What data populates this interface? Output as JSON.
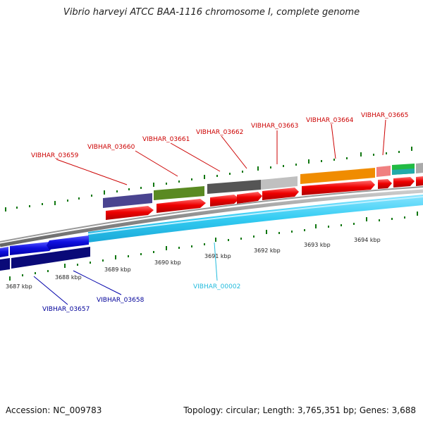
{
  "title": "Vibrio harveyi ATCC BAA-1116 chromosome I, complete genome",
  "footer": {
    "accession": "Accession: NC_009783",
    "summary": "Topology: circular; Length: 3,765,351 bp; Genes: 3,688"
  },
  "colors": {
    "red": "#ee0000",
    "label_red": "#cc0000",
    "blue": "#1010e0",
    "navy": "#0a0a78",
    "label_navy": "#000099",
    "cyan": "#33ccf2",
    "label_cyan": "#22bbdd",
    "tick_green": "#117711",
    "backbone": "#888888"
  },
  "scale_labels": [
    "3687 kbp",
    "3688 kbp",
    "3689 kbp",
    "3690 kbp",
    "3691 kbp",
    "3692 kbp",
    "3693 kbp",
    "3694 kbp"
  ],
  "upper_labels": [
    "VIBHAR_03659",
    "VIBHAR_03660",
    "VIBHAR_03661",
    "VIBHAR_03662",
    "VIBHAR_03663",
    "VIBHAR_03664",
    "VIBHAR_03665"
  ],
  "lower_labels": [
    "VIBHAR_03657",
    "VIBHAR_03658",
    "VIBHAR_00002"
  ]
}
